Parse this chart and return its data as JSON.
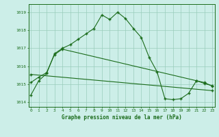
{
  "line1_x": [
    0,
    1,
    2,
    3,
    4,
    5,
    6,
    7,
    8,
    9,
    10,
    11,
    12,
    13,
    14,
    15,
    16,
    17,
    18,
    19,
    20,
    21,
    22,
    23
  ],
  "line1_y": [
    1014.4,
    1015.2,
    1015.6,
    1016.7,
    1017.0,
    1017.2,
    1017.5,
    1017.8,
    1018.1,
    1018.85,
    1018.6,
    1019.0,
    1018.65,
    1018.1,
    1017.6,
    1016.5,
    1015.7,
    1014.2,
    1014.15,
    1014.2,
    1014.5,
    1015.2,
    1015.1,
    1014.9
  ],
  "line2_x": [
    0,
    1,
    2,
    3,
    4,
    21,
    22,
    23
  ],
  "line2_y": [
    1015.1,
    1015.4,
    1015.65,
    1016.65,
    1016.95,
    1015.2,
    1015.05,
    1014.92
  ],
  "line3_x": [
    0,
    23
  ],
  "line3_y": [
    1015.55,
    1014.65
  ],
  "line_color": "#1a6b1a",
  "bg_color": "#cceee8",
  "grid_color": "#99ccbb",
  "title": "Graphe pression niveau de la mer (hPa)",
  "xlim": [
    -0.3,
    23.3
  ],
  "ylim": [
    1013.75,
    1019.45
  ],
  "yticks": [
    1014,
    1015,
    1016,
    1017,
    1018,
    1019
  ],
  "xtick_labels": [
    "0",
    "1",
    "2",
    "3",
    "4",
    "5",
    "6",
    "7",
    "8",
    "9",
    "10",
    "11",
    "12",
    "13",
    "14",
    "15",
    "16",
    "17",
    "18",
    "19",
    "20",
    "21",
    "22",
    "23"
  ]
}
